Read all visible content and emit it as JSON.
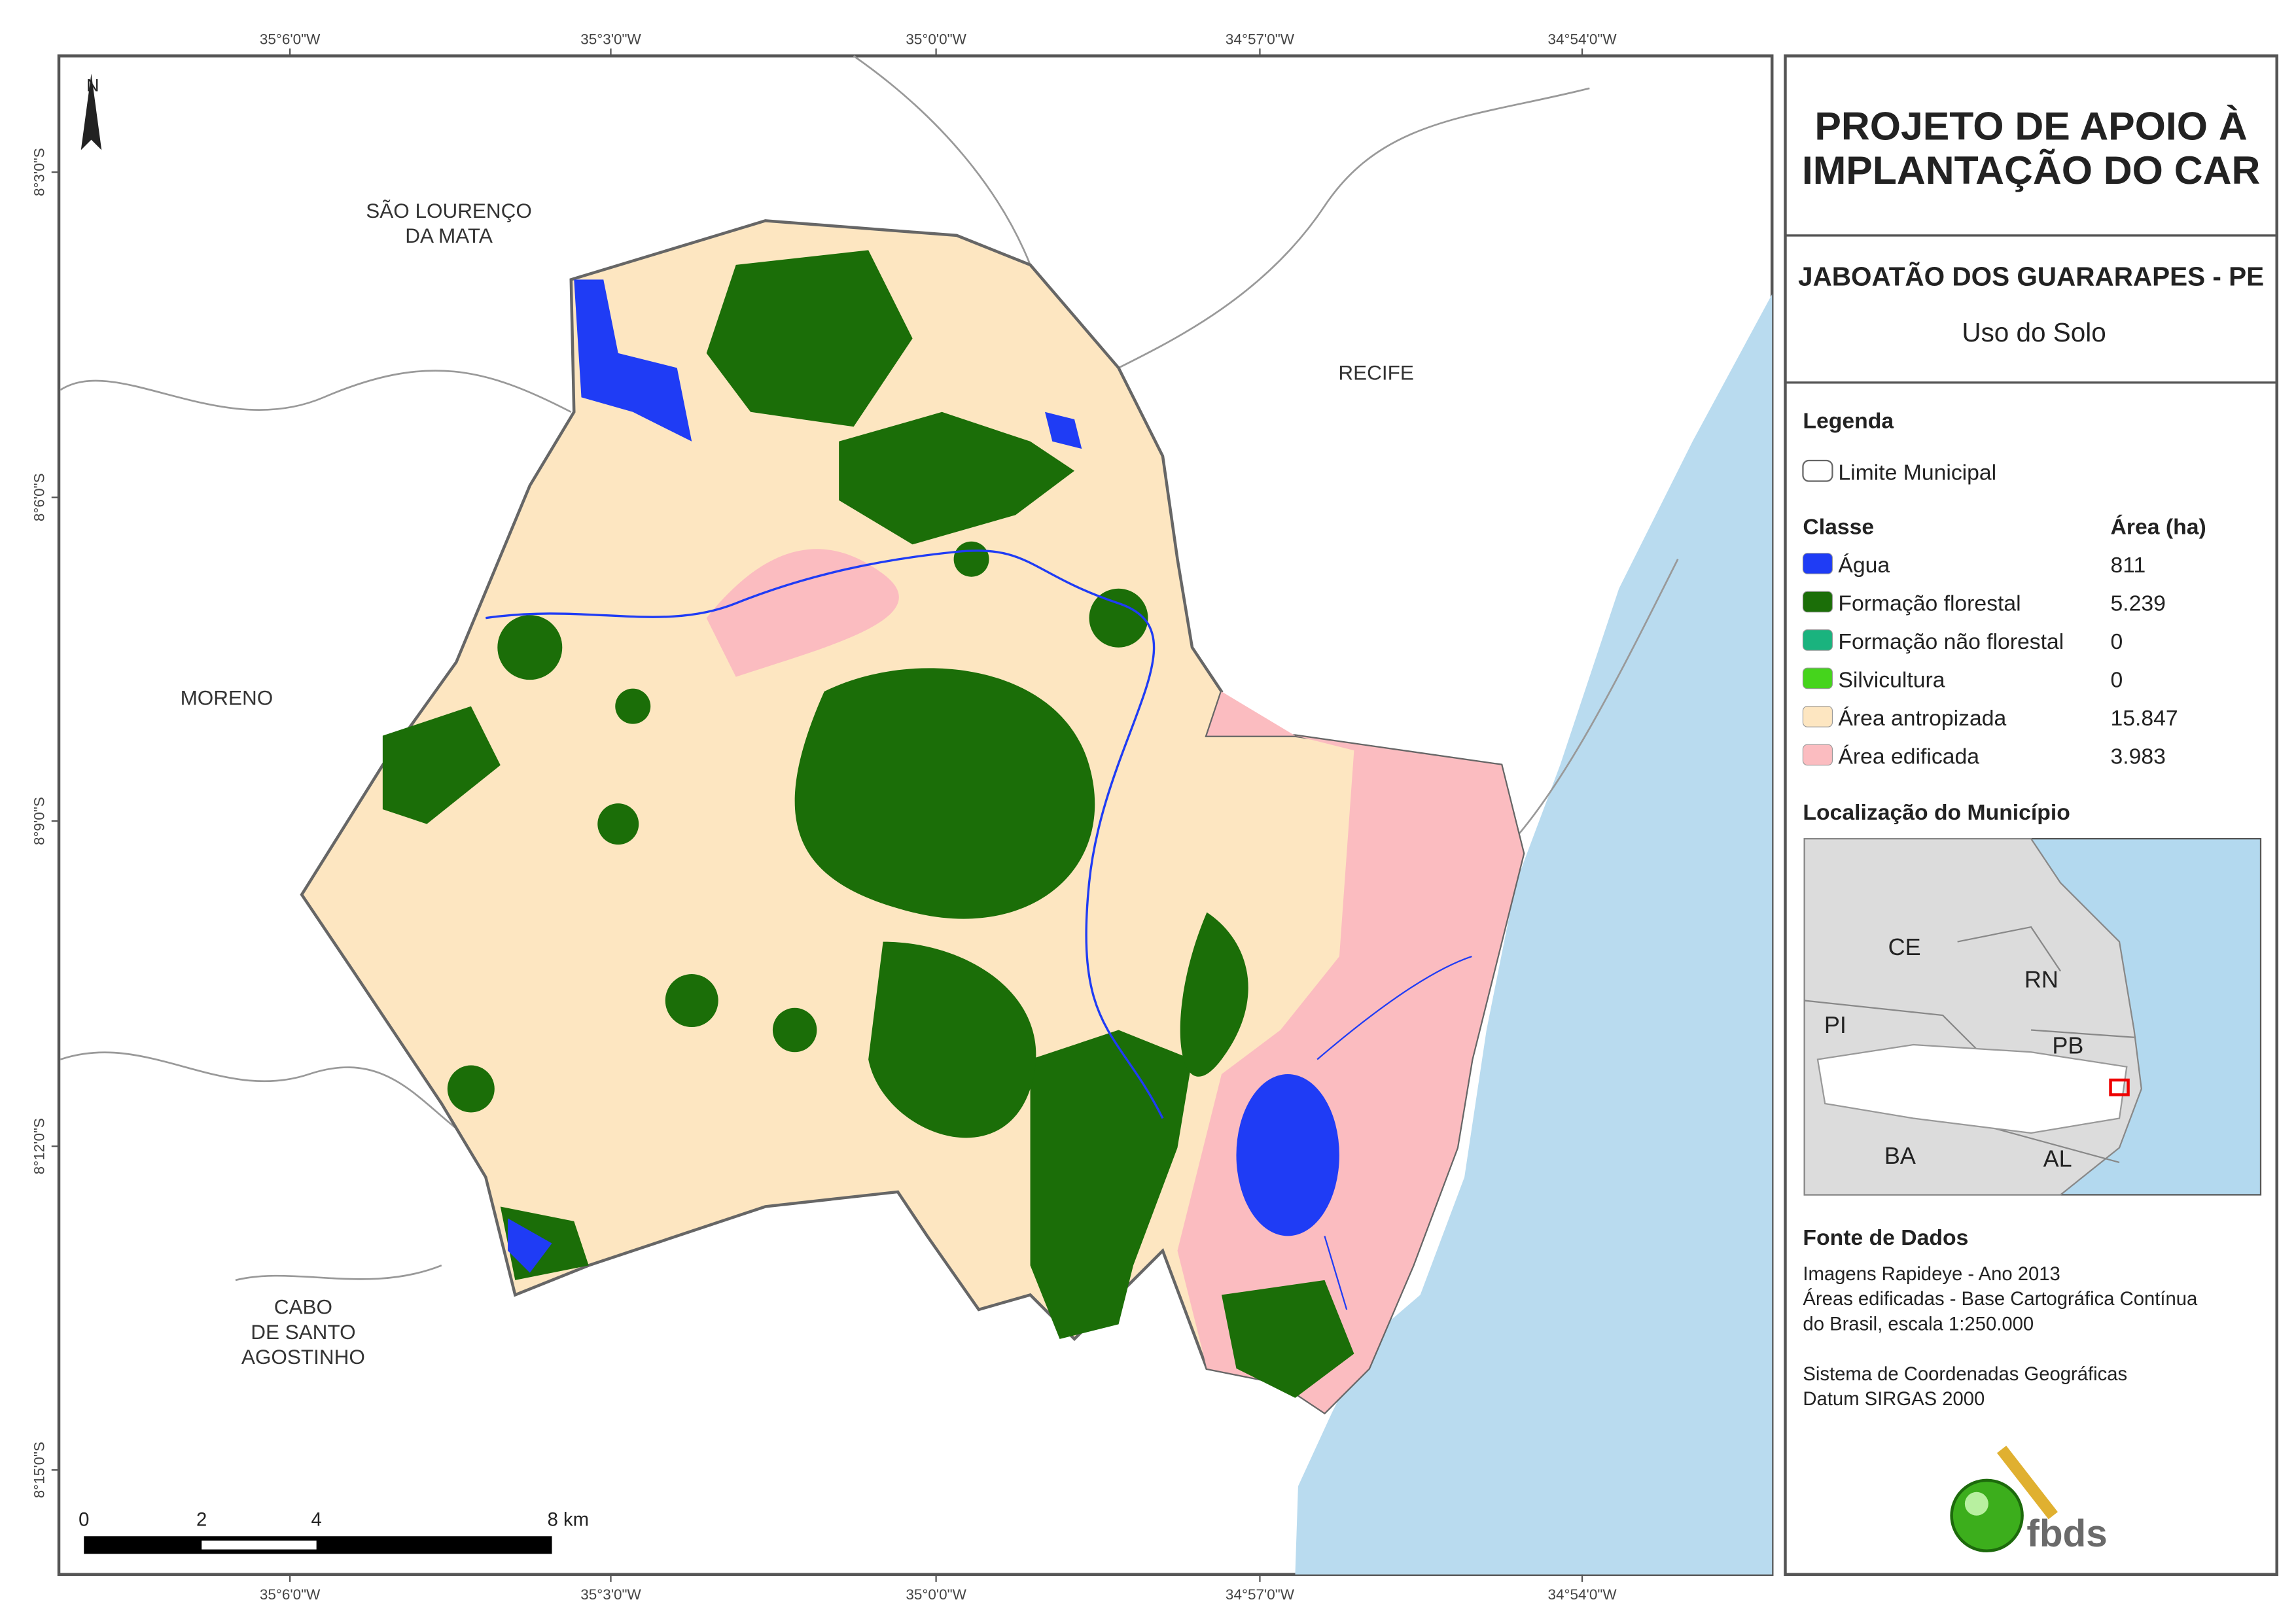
{
  "header": {
    "title_lines": [
      "PROJETO DE APOIO À",
      "IMPLANTAÇÃO DO CAR"
    ],
    "municipality": "JABOATÃO DOS GUARARAPES - PE",
    "theme": "Uso do Solo"
  },
  "legend": {
    "title": "Legenda",
    "boundary": "Limite Municipal",
    "class_header": "Classe",
    "area_header": "Área (ha)",
    "classes": [
      {
        "name": "Água",
        "color": "#1f3cf5",
        "area": "811"
      },
      {
        "name": "Formação florestal",
        "color": "#1b6e08",
        "area": "5.239"
      },
      {
        "name": "Formação não florestal",
        "color": "#1ab37e",
        "area": "0"
      },
      {
        "name": "Silvicultura",
        "color": "#45d41c",
        "area": "0"
      },
      {
        "name": "Área antropizada",
        "color": "#fde6c1",
        "area": "15.847"
      },
      {
        "name": "Área edificada",
        "color": "#fbbcc0",
        "area": "3.983"
      }
    ]
  },
  "location": {
    "title": "Localização do Município",
    "labels": [
      "CE",
      "RN",
      "PI",
      "PB",
      "BA",
      "AL"
    ]
  },
  "sources": {
    "title": "Fonte de Dados",
    "lines": [
      "Imagens Rapideye - Ano 2013",
      "Áreas edificadas - Base Cartográfica Contínua",
      "do Brasil, escala 1:250.000",
      "Sistema de Coordenadas Geográficas",
      "Datum SIRGAS 2000"
    ]
  },
  "logo": "fbds",
  "map": {
    "north": "N",
    "places": [
      "SÃO LOURENÇO",
      "DA MATA",
      "RECIFE",
      "MORENO",
      "CABO",
      "DE SANTO",
      "AGOSTINHO"
    ],
    "longitudes": [
      "35°6'0\"W",
      "35°3'0\"W",
      "35°0'0\"W",
      "34°57'0\"W",
      "34°54'0\"W"
    ],
    "latitudes": [
      "8°3'0\"S",
      "8°6'0\"S",
      "8°9'0\"S",
      "8°12'0\"S",
      "8°15'0\"S"
    ],
    "scale": [
      "0",
      "2",
      "4",
      "8 km"
    ]
  }
}
